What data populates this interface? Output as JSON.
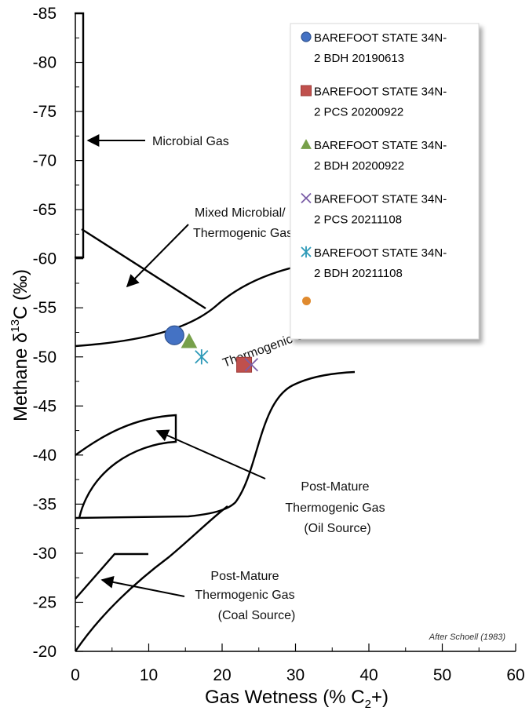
{
  "chart_data": {
    "type": "scatter",
    "xlabel_main": "Gas Wetness (% C",
    "xlabel_sub": "2",
    "xlabel_end": "+)",
    "ylabel_main": "Methane  δ",
    "ylabel_sup": "13",
    "ylabel_end": "C (‰)",
    "xlim": [
      0,
      60
    ],
    "ylim": [
      -20,
      -85
    ],
    "x_ticks": [
      "0",
      "10",
      "20",
      "30",
      "40",
      "50",
      "60"
    ],
    "y_ticks": [
      "-85",
      "-80",
      "-75",
      "-70",
      "-65",
      "-60",
      "-55",
      "-50",
      "-45",
      "-40",
      "-35",
      "-30",
      "-25",
      "-20"
    ],
    "series": [
      {
        "name": "BAREFOOT STATE 34N-2 BDH 20190613",
        "legend_lines": [
          "BAREFOOT STATE 34N-",
          "2 BDH 20190613"
        ],
        "marker": "circle",
        "color": "#4472C4",
        "x": 13.5,
        "y": -52.2
      },
      {
        "name": "BAREFOOT STATE 34N-2 PCS 20200922",
        "legend_lines": [
          "BAREFOOT STATE 34N-",
          "2 PCS 20200922"
        ],
        "marker": "square",
        "color": "#C0504D",
        "x": 23.0,
        "y": -49.2
      },
      {
        "name": "BAREFOOT STATE 34N-2 BDH 20200922",
        "legend_lines": [
          "BAREFOOT STATE 34N-",
          "2 BDH 20200922"
        ],
        "marker": "triangle",
        "color": "#77A04A",
        "x": 15.5,
        "y": -51.6
      },
      {
        "name": "BAREFOOT STATE 34N-2 PCS 20211108",
        "legend_lines": [
          "BAREFOOT STATE 34N-",
          "2 PCS 20211108"
        ],
        "marker": "x",
        "color": "#7B5EA7",
        "x": 24.0,
        "y": -49.2
      },
      {
        "name": "BAREFOOT STATE 34N-2 BDH 20211108",
        "legend_lines": [
          "BAREFOOT STATE 34N-",
          "2 BDH 20211108"
        ],
        "marker": "star",
        "color": "#2E9AB8",
        "x": 17.2,
        "y": -50.0
      }
    ],
    "extra_point": {
      "marker": "circle",
      "color": "#E08A2E",
      "x": 31.5,
      "y": -55.7
    },
    "annotations": {
      "microbial": "Microbial Gas",
      "mixed_line1": "Mixed Microbial/",
      "mixed_line2": "Thermogenic Gas",
      "thermogenic": "Thermogenic Gas",
      "oil_line1": "Post-Mature",
      "oil_line2": "Thermogenic Gas",
      "oil_line3": "(Oil Source)",
      "coal_line1": "Post-Mature",
      "coal_line2": "Thermogenic Gas",
      "coal_line3": "(Coal Source)",
      "credit": "After Schoell (1983)"
    },
    "grid": false,
    "legend_position": "top-right"
  }
}
